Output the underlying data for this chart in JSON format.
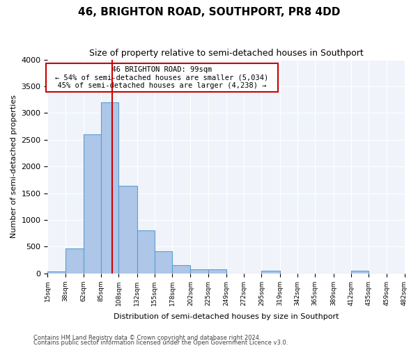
{
  "title": "46, BRIGHTON ROAD, SOUTHPORT, PR8 4DD",
  "subtitle": "Size of property relative to semi-detached houses in Southport",
  "xlabel": "Distribution of semi-detached houses by size in Southport",
  "ylabel": "Number of semi-detached properties",
  "footer1": "Contains HM Land Registry data © Crown copyright and database right 2024.",
  "footer2": "Contains public sector information licensed under the Open Government Licence v3.0.",
  "annotation_title": "46 BRIGHTON ROAD: 99sqm",
  "annotation_line1": "← 54% of semi-detached houses are smaller (5,034)",
  "annotation_line2": "45% of semi-detached houses are larger (4,238) →",
  "property_size": 99,
  "bar_color": "#aec6e8",
  "bar_edge_color": "#5a9fd4",
  "vline_color": "#cc0000",
  "annotation_box_color": "#cc0000",
  "background_color": "#f0f4fa",
  "ylim": [
    0,
    4000
  ],
  "yticks": [
    0,
    500,
    1000,
    1500,
    2000,
    2500,
    3000,
    3500,
    4000
  ],
  "bin_edges": [
    15,
    38,
    62,
    85,
    108,
    132,
    155,
    178,
    202,
    225,
    249,
    272,
    295,
    319,
    342,
    365,
    389,
    412,
    435,
    459,
    482
  ],
  "bar_heights": [
    30,
    460,
    2600,
    3200,
    1640,
    800,
    410,
    150,
    75,
    75,
    0,
    0,
    50,
    0,
    0,
    0,
    0,
    50,
    0,
    0
  ]
}
